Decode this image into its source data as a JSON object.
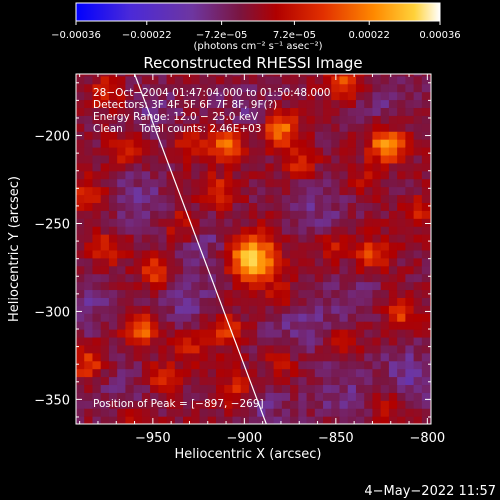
{
  "chart_data": {
    "type": "heatmap",
    "title": "Reconstructed RHESSI Image",
    "xlabel": "Heliocentric X (arcsec)",
    "ylabel": "Heliocentric Y (arcsec)",
    "xlim": [
      -992,
      -798
    ],
    "ylim": [
      -364,
      -165
    ],
    "x_ticks": [
      -950,
      -900,
      -850,
      -800
    ],
    "x_tick_labels": [
      "−950",
      "−900",
      "−850",
      "−800"
    ],
    "y_ticks": [
      -200,
      -250,
      -300,
      -350
    ],
    "y_tick_labels": [
      "−200",
      "−250",
      "−300",
      "−350"
    ],
    "colorbar": {
      "range": [
        -0.00036,
        0.00036
      ],
      "tick_labels": [
        "−0.00036",
        "−0.00022",
        "−7.2e−05",
        "7.2e−05",
        "0.00022",
        "0.00036"
      ],
      "unit_label": "(photons cm⁻² s⁻¹ asec⁻²)",
      "colors": [
        "#0000ff",
        "#4b2ad8",
        "#6e36a0",
        "#7a1540",
        "#b00000",
        "#e23000",
        "#ff8a00",
        "#ffd23a",
        "#ffffff"
      ]
    },
    "annotations": [
      "28−Oct−2004 01:47:04.000 to 01:50:48.000",
      "Detectors: 3F 4F 5F 6F 7F 8F, 9F(?)",
      "Energy Range: 12.0 − 25.0 keV",
      "Clean     Total counts: 2.46E+03"
    ],
    "peak_label": "Position of Peak = [−897, −269]",
    "peak": {
      "x": -897,
      "y": -269
    },
    "limb_line": [
      {
        "x": -960,
        "y": -165
      },
      {
        "x": -888,
        "y": -364
      }
    ],
    "hotspots": [
      {
        "x": -896,
        "y": -269,
        "value": 0.00036
      },
      {
        "x": -880,
        "y": -196,
        "value": 0.00024
      },
      {
        "x": -822,
        "y": -205,
        "value": 0.0003
      },
      {
        "x": -910,
        "y": -205,
        "value": 0.00022
      },
      {
        "x": -845,
        "y": -169,
        "value": 0.00018
      },
      {
        "x": -948,
        "y": -277,
        "value": 0.00018
      },
      {
        "x": -975,
        "y": -265,
        "value": 0.00014
      },
      {
        "x": -956,
        "y": -309,
        "value": 0.00022
      },
      {
        "x": -830,
        "y": -268,
        "value": 0.00018
      },
      {
        "x": -850,
        "y": -262,
        "value": 0.0001
      },
      {
        "x": -815,
        "y": -300,
        "value": 0.00016
      },
      {
        "x": -910,
        "y": -310,
        "value": 0.00016
      },
      {
        "x": -930,
        "y": -205,
        "value": 0.00012
      },
      {
        "x": -935,
        "y": -250,
        "value": 0.0001
      },
      {
        "x": -905,
        "y": -345,
        "value": 0.00014
      },
      {
        "x": -985,
        "y": -330,
        "value": 0.00016
      },
      {
        "x": -945,
        "y": -338,
        "value": 0.00012
      },
      {
        "x": -985,
        "y": -233,
        "value": 0.00012
      },
      {
        "x": -880,
        "y": -330,
        "value": 0.0001
      },
      {
        "x": -870,
        "y": -215,
        "value": 0.00012
      },
      {
        "x": -880,
        "y": -290,
        "value": 0.0001
      },
      {
        "x": -915,
        "y": -232,
        "value": 0.00014
      },
      {
        "x": -965,
        "y": -208,
        "value": 0.00012
      },
      {
        "x": -802,
        "y": -244,
        "value": 0.0001
      },
      {
        "x": -960,
        "y": -362,
        "value": 0.0001
      },
      {
        "x": -820,
        "y": -352,
        "value": 0.0001
      },
      {
        "x": -847,
        "y": -318,
        "value": 8e-05
      },
      {
        "x": -975,
        "y": -175,
        "value": 0.00012
      },
      {
        "x": -930,
        "y": -320,
        "value": 0.0001
      },
      {
        "x": -835,
        "y": -225,
        "value": 8e-05
      }
    ],
    "coldspots": [
      {
        "x": -958,
        "y": -235,
        "value": -8e-05
      },
      {
        "x": -932,
        "y": -290,
        "value": -9e-05
      },
      {
        "x": -810,
        "y": -337,
        "value": -0.0001
      },
      {
        "x": -860,
        "y": -240,
        "value": -8e-05
      },
      {
        "x": -870,
        "y": -308,
        "value": -8e-05
      },
      {
        "x": -848,
        "y": -345,
        "value": -7e-05
      },
      {
        "x": -985,
        "y": -295,
        "value": -8e-05
      },
      {
        "x": -918,
        "y": -260,
        "value": -7e-05
      },
      {
        "x": -900,
        "y": -185,
        "value": -6e-05
      },
      {
        "x": -820,
        "y": -180,
        "value": -6e-05
      },
      {
        "x": -950,
        "y": -185,
        "value": -7e-05
      },
      {
        "x": -890,
        "y": -355,
        "value": -7e-05
      },
      {
        "x": -965,
        "y": -345,
        "value": -6e-05
      },
      {
        "x": -840,
        "y": -290,
        "value": -6e-05
      }
    ]
  },
  "timestamp": "4−May−2022 11:57"
}
